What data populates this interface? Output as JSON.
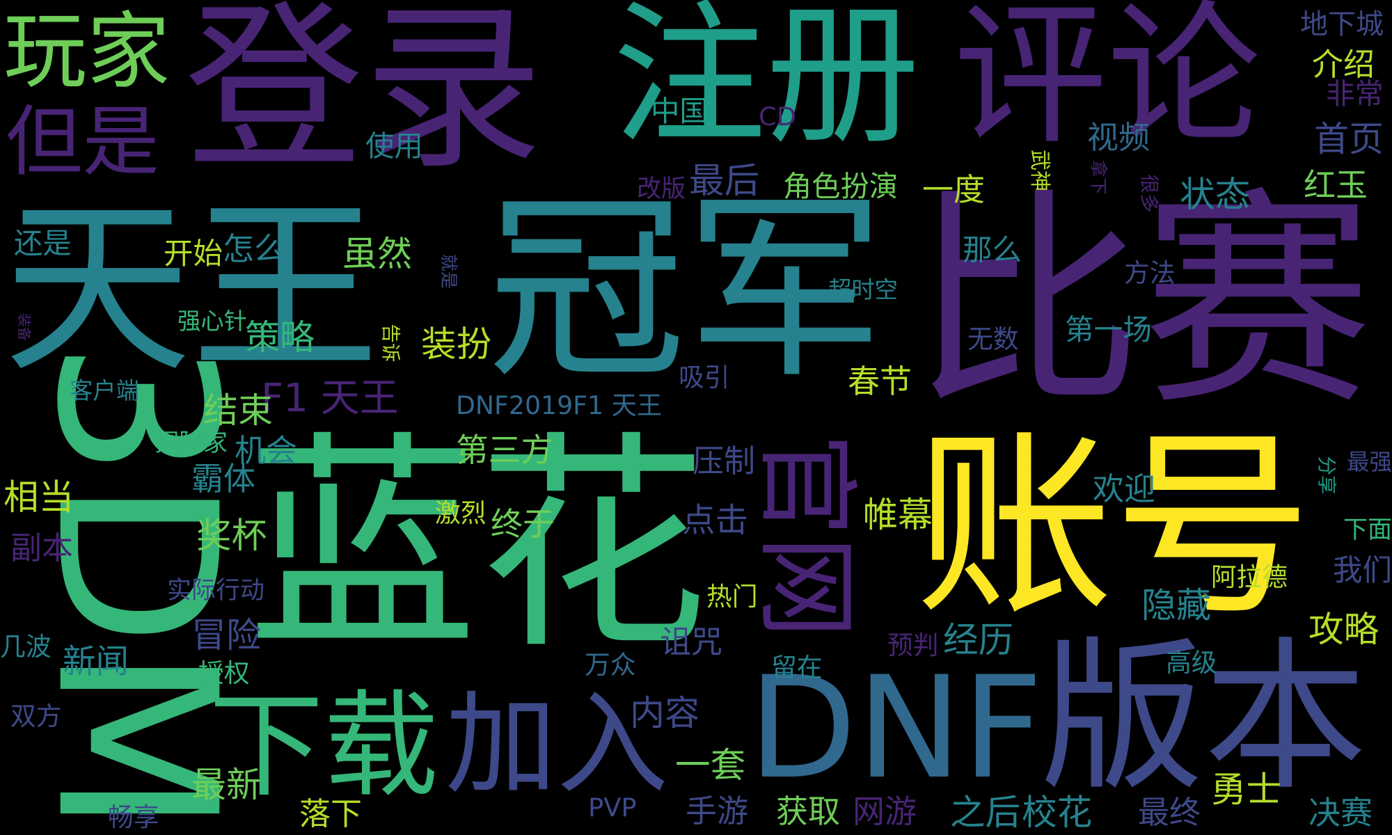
{
  "palette": {
    "background": "#000000",
    "dark_purple": "#482475",
    "indigo": "#3e4989",
    "blue": "#31688e",
    "teal": "#26828e",
    "green_teal": "#1f9e89",
    "green": "#35b779",
    "light_green": "#6ece58",
    "yellow_green": "#b5de2b",
    "yellow": "#fde725"
  },
  "words": [
    {
      "text": "登录",
      "color": "#482475",
      "rotated": false
    },
    {
      "text": "注册",
      "color": "#1f9e89",
      "rotated": false
    },
    {
      "text": "评论",
      "color": "#482475",
      "rotated": false
    },
    {
      "text": "玩家",
      "color": "#6ece58",
      "rotated": false
    },
    {
      "text": "但是",
      "color": "#482475",
      "rotated": false
    },
    {
      "text": "天王",
      "color": "#26828e",
      "rotated": false
    },
    {
      "text": "冠军",
      "color": "#26828e",
      "rotated": false
    },
    {
      "text": "比赛",
      "color": "#482475",
      "rotated": false
    },
    {
      "text": "3DM",
      "color": "#35b779",
      "rotated": true
    },
    {
      "text": "蓝花",
      "color": "#35b779",
      "rotated": false
    },
    {
      "text": "账号",
      "color": "#fde725",
      "rotated": false
    },
    {
      "text": "官网",
      "color": "#482475",
      "rotated": true
    },
    {
      "text": "DNF",
      "color": "#31688e",
      "rotated": false
    },
    {
      "text": "版本",
      "color": "#3e4989",
      "rotated": false
    },
    {
      "text": "下载",
      "color": "#35b779",
      "rotated": false
    },
    {
      "text": "加入",
      "color": "#3e4989",
      "rotated": false
    },
    {
      "text": "F1 天王",
      "color": "#482475",
      "rotated": false
    },
    {
      "text": "DNF2019F1 天王",
      "color": "#31688e",
      "rotated": false
    },
    {
      "text": "地下城",
      "color": "#3e4989",
      "rotated": false
    },
    {
      "text": "介绍",
      "color": "#b5de2b",
      "rotated": false
    },
    {
      "text": "非常",
      "color": "#482475",
      "rotated": false
    },
    {
      "text": "首页",
      "color": "#3e4989",
      "rotated": false
    },
    {
      "text": "红玉",
      "color": "#6ece58",
      "rotated": false
    },
    {
      "text": "中国",
      "color": "#1f9e89",
      "rotated": false
    },
    {
      "text": "CD",
      "color": "#482475",
      "rotated": false
    },
    {
      "text": "视频",
      "color": "#31688e",
      "rotated": false
    },
    {
      "text": "使用",
      "color": "#26828e",
      "rotated": false
    },
    {
      "text": "最后",
      "color": "#3e4989",
      "rotated": false
    },
    {
      "text": "角色扮演",
      "color": "#6ece58",
      "rotated": false
    },
    {
      "text": "一度",
      "color": "#b5de2b",
      "rotated": false
    },
    {
      "text": "武神",
      "color": "#b5de2b",
      "rotated": true
    },
    {
      "text": "拿下",
      "color": "#482475",
      "rotated": true
    },
    {
      "text": "很多",
      "color": "#482475",
      "rotated": true
    },
    {
      "text": "状态",
      "color": "#26828e",
      "rotated": false
    },
    {
      "text": "改版",
      "color": "#482475",
      "rotated": false
    },
    {
      "text": "还是",
      "color": "#26828e",
      "rotated": false
    },
    {
      "text": "开始",
      "color": "#b5de2b",
      "rotated": false
    },
    {
      "text": "怎么",
      "color": "#26828e",
      "rotated": false
    },
    {
      "text": "虽然",
      "color": "#6ece58",
      "rotated": false
    },
    {
      "text": "那么",
      "color": "#26828e",
      "rotated": false
    },
    {
      "text": "就是",
      "color": "#3e4989",
      "rotated": true
    },
    {
      "text": "超时空",
      "color": "#26828e",
      "rotated": false
    },
    {
      "text": "方法",
      "color": "#3e4989",
      "rotated": false
    },
    {
      "text": "装备",
      "color": "#482475",
      "rotated": true
    },
    {
      "text": "强心针",
      "color": "#35b779",
      "rotated": false
    },
    {
      "text": "策略",
      "color": "#35b779",
      "rotated": false
    },
    {
      "text": "告诉",
      "color": "#b5de2b",
      "rotated": true
    },
    {
      "text": "装扮",
      "color": "#b5de2b",
      "rotated": false
    },
    {
      "text": "第一场",
      "color": "#26828e",
      "rotated": false
    },
    {
      "text": "无数",
      "color": "#3e4989",
      "rotated": false
    },
    {
      "text": "吸引",
      "color": "#3e4989",
      "rotated": false
    },
    {
      "text": "春节",
      "color": "#b5de2b",
      "rotated": false
    },
    {
      "text": "客户端",
      "color": "#26828e",
      "rotated": false
    },
    {
      "text": "结束",
      "color": "#6ece58",
      "rotated": false
    },
    {
      "text": "探险家",
      "color": "#35b779",
      "rotated": false
    },
    {
      "text": "机会",
      "color": "#26828e",
      "rotated": false
    },
    {
      "text": "第三方",
      "color": "#6ece58",
      "rotated": false
    },
    {
      "text": "压制",
      "color": "#3e4989",
      "rotated": false
    },
    {
      "text": "分享",
      "color": "#1f9e89",
      "rotated": true
    },
    {
      "text": "最强",
      "color": "#3e4989",
      "rotated": false
    },
    {
      "text": "霸体",
      "color": "#26828e",
      "rotated": false
    },
    {
      "text": "相当",
      "color": "#b5de2b",
      "rotated": false
    },
    {
      "text": "欢迎",
      "color": "#26828e",
      "rotated": false
    },
    {
      "text": "激烈",
      "color": "#b5de2b",
      "rotated": false
    },
    {
      "text": "终于",
      "color": "#6ece58",
      "rotated": false
    },
    {
      "text": "帷幕",
      "color": "#b5de2b",
      "rotated": false
    },
    {
      "text": "点击",
      "color": "#3e4989",
      "rotated": false
    },
    {
      "text": "奖杯",
      "color": "#6ece58",
      "rotated": false
    },
    {
      "text": "下面",
      "color": "#35b779",
      "rotated": false
    },
    {
      "text": "副本",
      "color": "#482475",
      "rotated": false
    },
    {
      "text": "阿拉德",
      "color": "#b5de2b",
      "rotated": false
    },
    {
      "text": "我们",
      "color": "#3e4989",
      "rotated": false
    },
    {
      "text": "实际行动",
      "color": "#3e4989",
      "rotated": false
    },
    {
      "text": "热门",
      "color": "#b5de2b",
      "rotated": false
    },
    {
      "text": "隐藏",
      "color": "#26828e",
      "rotated": false
    },
    {
      "text": "冒险",
      "color": "#3e4989",
      "rotated": false
    },
    {
      "text": "诅咒",
      "color": "#3e4989",
      "rotated": false
    },
    {
      "text": "经历",
      "color": "#26828e",
      "rotated": false
    },
    {
      "text": "攻略",
      "color": "#b5de2b",
      "rotated": false
    },
    {
      "text": "几波",
      "color": "#26828e",
      "rotated": false
    },
    {
      "text": "新闻",
      "color": "#26828e",
      "rotated": false
    },
    {
      "text": "授权",
      "color": "#35b779",
      "rotated": false
    },
    {
      "text": "万众",
      "color": "#31688e",
      "rotated": false
    },
    {
      "text": "留在",
      "color": "#26828e",
      "rotated": false
    },
    {
      "text": "预判",
      "color": "#482475",
      "rotated": false
    },
    {
      "text": "高级",
      "color": "#26828e",
      "rotated": false
    },
    {
      "text": "内容",
      "color": "#3e4989",
      "rotated": false
    },
    {
      "text": "双方",
      "color": "#3e4989",
      "rotated": false
    },
    {
      "text": "一套",
      "color": "#6ece58",
      "rotated": false
    },
    {
      "text": "勇士",
      "color": "#b5de2b",
      "rotated": false
    },
    {
      "text": "最新",
      "color": "#6ece58",
      "rotated": false
    },
    {
      "text": "落下",
      "color": "#b5de2b",
      "rotated": false
    },
    {
      "text": "畅享",
      "color": "#3e4989",
      "rotated": false
    },
    {
      "text": "PVP",
      "color": "#3e4989",
      "rotated": false
    },
    {
      "text": "手游",
      "color": "#3e4989",
      "rotated": false
    },
    {
      "text": "获取",
      "color": "#6ece58",
      "rotated": false
    },
    {
      "text": "网游",
      "color": "#482475",
      "rotated": false
    },
    {
      "text": "之后",
      "color": "#26828e",
      "rotated": false
    },
    {
      "text": "校花",
      "color": "#26828e",
      "rotated": false
    },
    {
      "text": "最终",
      "color": "#3e4989",
      "rotated": false
    },
    {
      "text": "决赛",
      "color": "#26828e",
      "rotated": false
    }
  ]
}
